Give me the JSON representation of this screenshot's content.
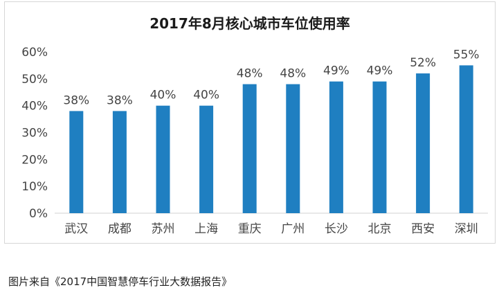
{
  "chart_data": {
    "type": "bar",
    "title": "2017年8月核心城市车位使用率",
    "categories": [
      "武汉",
      "成都",
      "苏州",
      "上海",
      "重庆",
      "广州",
      "长沙",
      "北京",
      "西安",
      "深圳"
    ],
    "values": [
      38,
      38,
      40,
      40,
      48,
      48,
      49,
      49,
      52,
      55
    ],
    "data_labels": [
      "38%",
      "38%",
      "40%",
      "40%",
      "48%",
      "48%",
      "49%",
      "49%",
      "52%",
      "55%"
    ],
    "yticks": [
      "0%",
      "10%",
      "20%",
      "30%",
      "40%",
      "50%",
      "60%"
    ],
    "ylim": [
      0,
      60
    ],
    "xlabel": "",
    "ylabel": "",
    "grid": false,
    "bar_color": "#1f7fc1"
  },
  "caption": "图片来自《2017中国智慧停车行业大数据报告》"
}
